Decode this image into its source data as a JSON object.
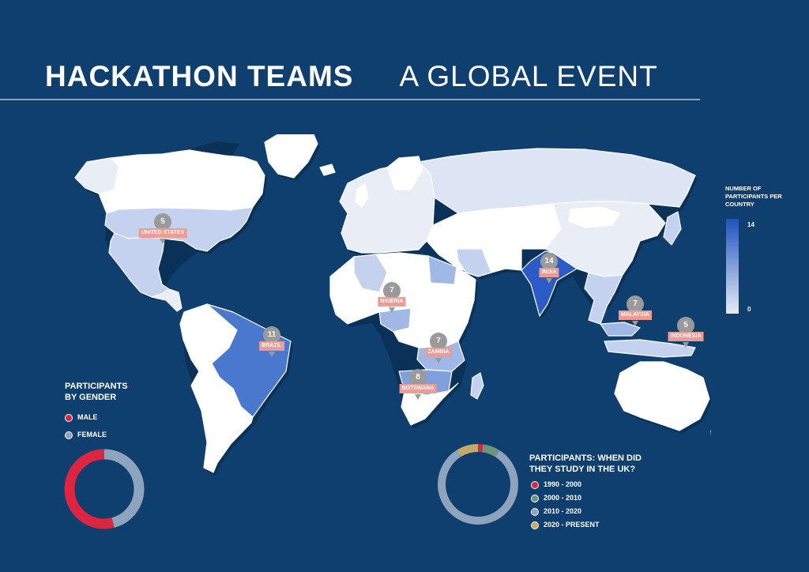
{
  "header": {
    "title_bold": "HACKATHON TEAMS",
    "title_light": "A GLOBAL EVENT"
  },
  "scale_legend": {
    "title": "NUMBER OF PARTICIPANTS PER COUNTRY",
    "max_label": "14",
    "min_label": "0",
    "color_low": "#e7ebf3",
    "color_high": "#1f53c0"
  },
  "markers": [
    {
      "country": "UNITED STATES",
      "count": "5"
    },
    {
      "country": "BRAZIL",
      "count": "11"
    },
    {
      "country": "NIGERIA",
      "count": "7"
    },
    {
      "country": "ZAMBIA",
      "count": "7"
    },
    {
      "country": "BOTSWANA",
      "count": "8"
    },
    {
      "country": "INDIA",
      "count": "14"
    },
    {
      "country": "MALAYSIA",
      "count": "7"
    },
    {
      "country": "INDONESIA",
      "count": "5"
    }
  ],
  "gender": {
    "title_line1": "PARTICIPANTS",
    "title_line2": "BY GENDER",
    "items": [
      {
        "label": "MALE",
        "color": "#dc2641",
        "fraction": 0.54
      },
      {
        "label": "FEMALE",
        "color": "#8ea4bd",
        "fraction": 0.46
      }
    ]
  },
  "uk_study": {
    "title_line1": "PARTICIPANTS: WHEN DID",
    "title_line2": "THEY STUDY IN THE UK?",
    "items": [
      {
        "label": "1990 - 2000",
        "color": "#dc2641",
        "fraction": 0.02
      },
      {
        "label": "2000 - 2010",
        "color": "#6e937e",
        "fraction": 0.07
      },
      {
        "label": "2010 - 2020",
        "color": "#8ea4bd",
        "fraction": 0.82
      },
      {
        "label": "2020 - PRESENT",
        "color": "#c4a96a",
        "fraction": 0.09
      }
    ]
  }
}
